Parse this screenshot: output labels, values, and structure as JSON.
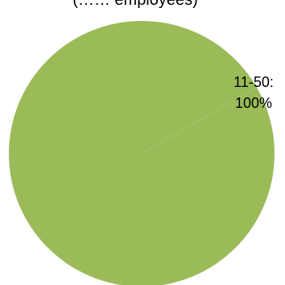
{
  "chart_data": {
    "type": "pie",
    "title": "(…… employees)",
    "categories": [
      "11-50"
    ],
    "values": [
      100
    ],
    "data_labels": [
      "11-50:",
      "100%"
    ],
    "colors": [
      "#9BBB59"
    ],
    "legend": "none"
  }
}
